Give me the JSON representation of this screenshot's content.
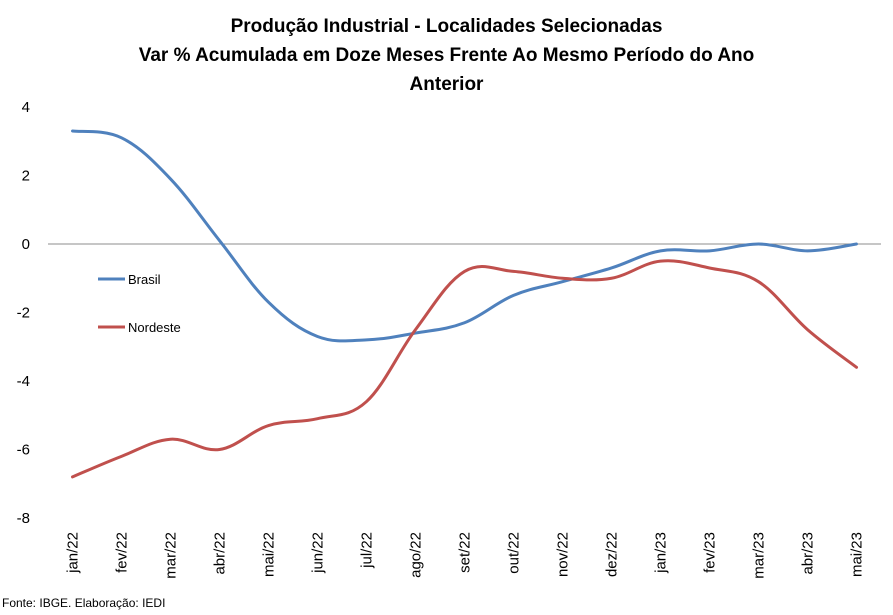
{
  "chart_data": {
    "type": "line",
    "title_lines": [
      "Produção Industrial - Localidades Selecionadas",
      "Var % Acumulada em Doze Meses Frente Ao Mesmo Período do Ano",
      "Anterior"
    ],
    "categories": [
      "jan/22",
      "fev/22",
      "mar/22",
      "abr/22",
      "mai/22",
      "jun/22",
      "jul/22",
      "ago/22",
      "set/22",
      "out/22",
      "nov/22",
      "dez/22",
      "jan/23",
      "fev/23",
      "mar/23",
      "abr/23",
      "mai/23"
    ],
    "series": [
      {
        "name": "Brasil",
        "color": "#4F81BD",
        "values": [
          3.3,
          3.1,
          1.9,
          0.1,
          -1.7,
          -2.7,
          -2.8,
          -2.6,
          -2.3,
          -1.5,
          -1.1,
          -0.7,
          -0.2,
          -0.2,
          0.0,
          -0.2,
          0.0
        ]
      },
      {
        "name": "Nordeste",
        "color": "#C0504D",
        "values": [
          -6.8,
          -6.2,
          -5.7,
          -6.0,
          -5.3,
          -5.1,
          -4.6,
          -2.5,
          -0.8,
          -0.8,
          -1.0,
          -1.0,
          -0.5,
          -0.7,
          -1.1,
          -2.5,
          -3.6
        ]
      }
    ],
    "y_ticks": [
      "4",
      "2",
      "0",
      "-2",
      "-4",
      "-6",
      "-8"
    ],
    "ylim": [
      -8,
      4
    ],
    "legend": "inside-left",
    "grid": false
  },
  "source": "Fonte: IBGE. Elaboração: IEDI"
}
